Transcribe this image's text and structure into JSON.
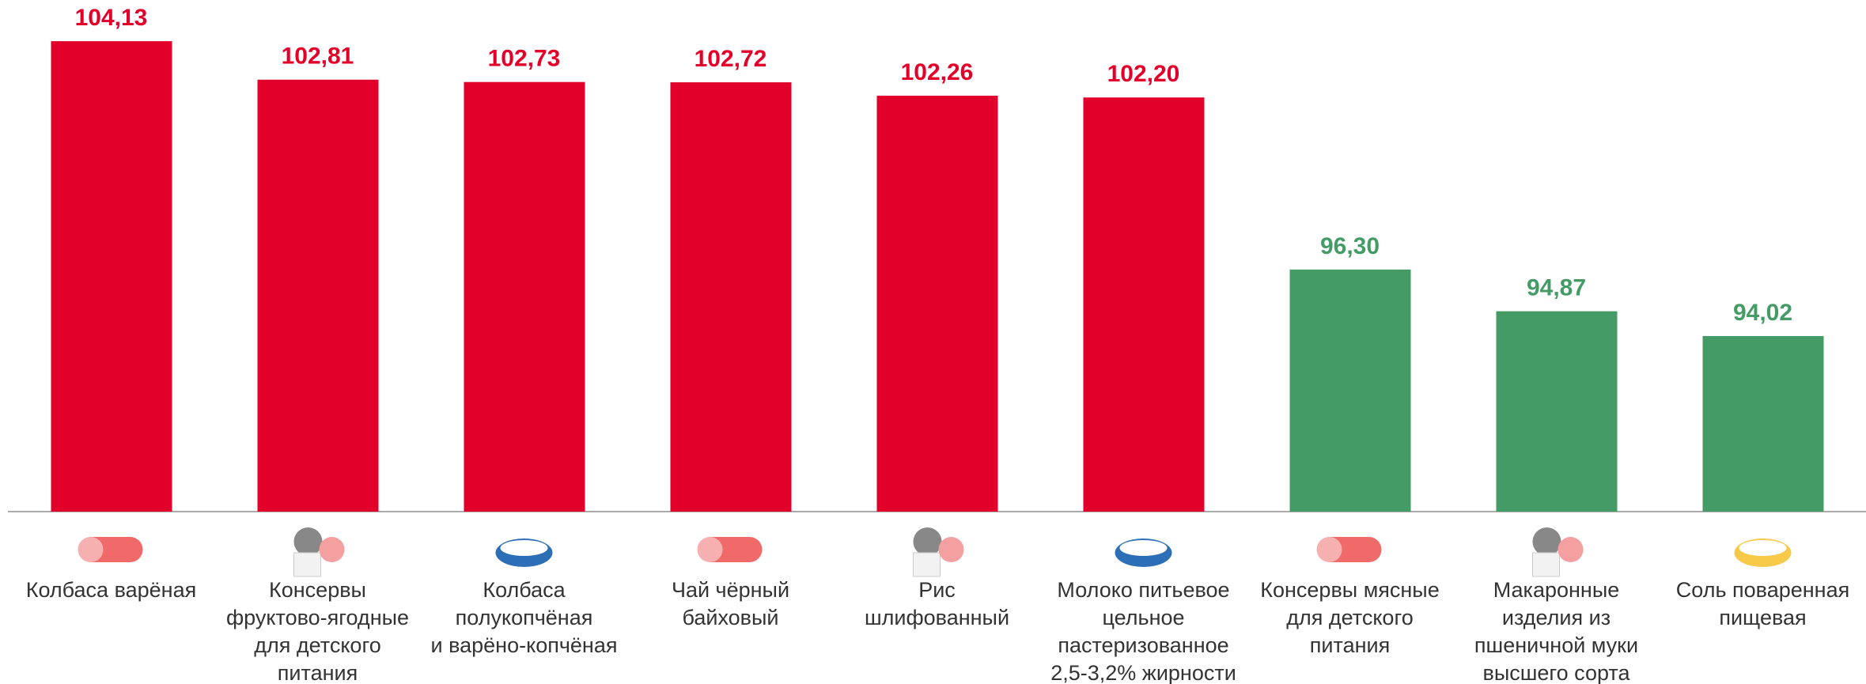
{
  "chart_data": {
    "type": "bar",
    "categories": [
      "Колбаса варёная",
      "Консервы\nфруктово-ягодные\nдля детского\nпитания",
      "Колбаса\nполукопчёная\nи варёно-копчёная",
      "Чай чёрный\nбайховый",
      "Рис\nшлифованный",
      "Молоко питьевое\nцельное\nпастеризованное\n2,5-3,2% жирности",
      "Консервы мясные\nдля детского\nпитания",
      "Макаронные\nизделия из\nпшеничной муки\nвысшего сорта",
      "Соль поваренная\nпищевая"
    ],
    "values": [
      104.13,
      102.81,
      102.73,
      102.72,
      102.26,
      102.2,
      96.3,
      94.87,
      94.02
    ],
    "value_labels": [
      "104,13",
      "102,81",
      "102,73",
      "102,72",
      "102,26",
      "102,20",
      "96,30",
      "94,87",
      "94,02"
    ],
    "colors": [
      "#e2002a",
      "#e2002a",
      "#e2002a",
      "#e2002a",
      "#e2002a",
      "#e2002a",
      "#459b66",
      "#459b66",
      "#459b66"
    ],
    "ylim": [
      88,
      105
    ]
  }
}
